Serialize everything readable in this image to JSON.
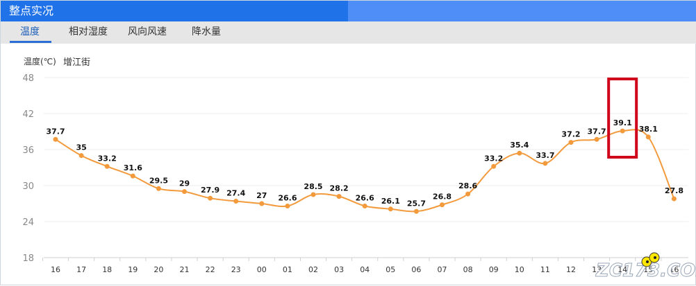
{
  "window": {
    "title": "整点实况"
  },
  "tabs": [
    {
      "label": "温度",
      "active": true
    },
    {
      "label": "相对湿度",
      "active": false
    },
    {
      "label": "风向风速",
      "active": false
    },
    {
      "label": "降水量",
      "active": false
    }
  ],
  "chart_meta": {
    "unit_label": "温度(℃)",
    "location": "增江街"
  },
  "colors": {
    "title_bar": "#1f72e8",
    "title_bar_right": "#4f8ef7",
    "tab_bar": "#e6e6e6",
    "active_tab": "#1d5fb9",
    "line": "#f39a3c",
    "highlight_box": "#d0021b"
  },
  "chart_data": {
    "type": "line",
    "title": "",
    "xlabel": "",
    "ylabel": "温度(℃)",
    "ylim": [
      18,
      48
    ],
    "yticks": [
      "48",
      "42",
      "36",
      "30",
      "24",
      "18"
    ],
    "categories": [
      "16",
      "17",
      "18",
      "19",
      "20",
      "21",
      "22",
      "23",
      "00",
      "01",
      "02",
      "03",
      "04",
      "05",
      "06",
      "07",
      "08",
      "09",
      "10",
      "11",
      "12",
      "13",
      "14",
      "15",
      "16"
    ],
    "values": [
      37.7,
      35,
      33.2,
      31.6,
      29.5,
      29,
      27.9,
      27.4,
      27,
      26.6,
      28.5,
      28.2,
      26.6,
      26.1,
      25.7,
      26.8,
      28.6,
      33.2,
      35.4,
      33.7,
      37.2,
      37.7,
      39.1,
      38.1,
      27.8
    ],
    "labels": [
      "37.7",
      "35",
      "33.2",
      "31.6",
      "29.5",
      "29",
      "27.9",
      "27.4",
      "27",
      "26.6",
      "28.5",
      "28.2",
      "26.6",
      "26.1",
      "25.7",
      "26.8",
      "28.6",
      "33.2",
      "35.4",
      "33.7",
      "37.2",
      "37.7",
      "39.1",
      "38.1",
      "27.8"
    ],
    "grid": true,
    "highlight_category": "14"
  },
  "watermark": {
    "text": "ZC173.COM"
  }
}
